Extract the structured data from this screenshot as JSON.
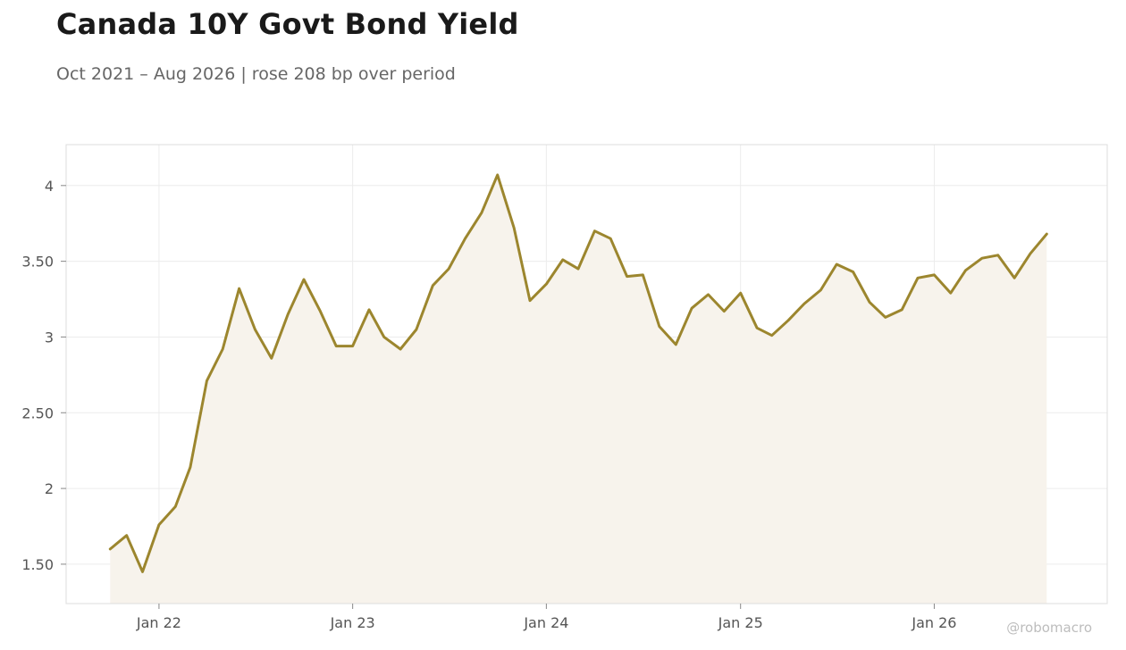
{
  "chart_data": {
    "type": "line",
    "title": "Canada 10Y Govt Bond Yield",
    "subtitle": "Oct 2021 – Aug 2026 | rose 208 bp over period",
    "xlabel": "",
    "ylabel": "",
    "x_tick_labels": [
      "Jan 22",
      "Jan 23",
      "Jan 24",
      "Jan 25",
      "Jan 26"
    ],
    "y_tick_labels": [
      "1.50",
      "2",
      "2.50",
      "3",
      "3.50",
      "4"
    ],
    "y_ticks": [
      1.5,
      2,
      2.5,
      3,
      3.5,
      4
    ],
    "ylim": [
      1.24,
      4.27
    ],
    "xlim": [
      "2021-07-10",
      "2026-11-23"
    ],
    "grid": true,
    "legend": "none",
    "colors": {
      "line": "#9c862e",
      "fill": "#f7f3ec",
      "grid": "#ececec",
      "frame": "#dddddd"
    },
    "series": [
      {
        "x": [
          "2021-10",
          "2021-11",
          "2021-12",
          "2022-01",
          "2022-02",
          "2022-03",
          "2022-04",
          "2022-05",
          "2022-06",
          "2022-07",
          "2022-08",
          "2022-09",
          "2022-10",
          "2022-11",
          "2022-12",
          "2023-01",
          "2023-02",
          "2023-03",
          "2023-04",
          "2023-05",
          "2023-06",
          "2023-07",
          "2023-08",
          "2023-09",
          "2023-10",
          "2023-11",
          "2023-12",
          "2024-01",
          "2024-02",
          "2024-03",
          "2024-04",
          "2024-05",
          "2024-06",
          "2024-07",
          "2024-08",
          "2024-09",
          "2024-10",
          "2024-11",
          "2024-12",
          "2025-01",
          "2025-02",
          "2025-03",
          "2025-04",
          "2025-05",
          "2025-06",
          "2025-07",
          "2025-08",
          "2025-09",
          "2025-10",
          "2025-11",
          "2025-12",
          "2026-01",
          "2026-02",
          "2026-03",
          "2026-04",
          "2026-05",
          "2026-06",
          "2026-07",
          "2026-08"
        ],
        "values": [
          1.6,
          1.69,
          1.45,
          1.76,
          1.88,
          2.14,
          2.71,
          2.92,
          3.32,
          3.05,
          2.86,
          3.15,
          3.38,
          3.17,
          2.94,
          2.94,
          3.18,
          3.0,
          2.92,
          3.05,
          3.34,
          3.45,
          3.65,
          3.82,
          4.07,
          3.72,
          3.24,
          3.35,
          3.51,
          3.45,
          3.7,
          3.65,
          3.4,
          3.41,
          3.07,
          2.95,
          3.19,
          3.28,
          3.17,
          3.29,
          3.06,
          3.01,
          3.11,
          3.22,
          3.31,
          3.48,
          3.43,
          3.23,
          3.13,
          3.18,
          3.39,
          3.41,
          3.29,
          3.44,
          3.52,
          3.54,
          3.39,
          3.55,
          3.68
        ]
      }
    ]
  },
  "watermark": "@robomacro"
}
